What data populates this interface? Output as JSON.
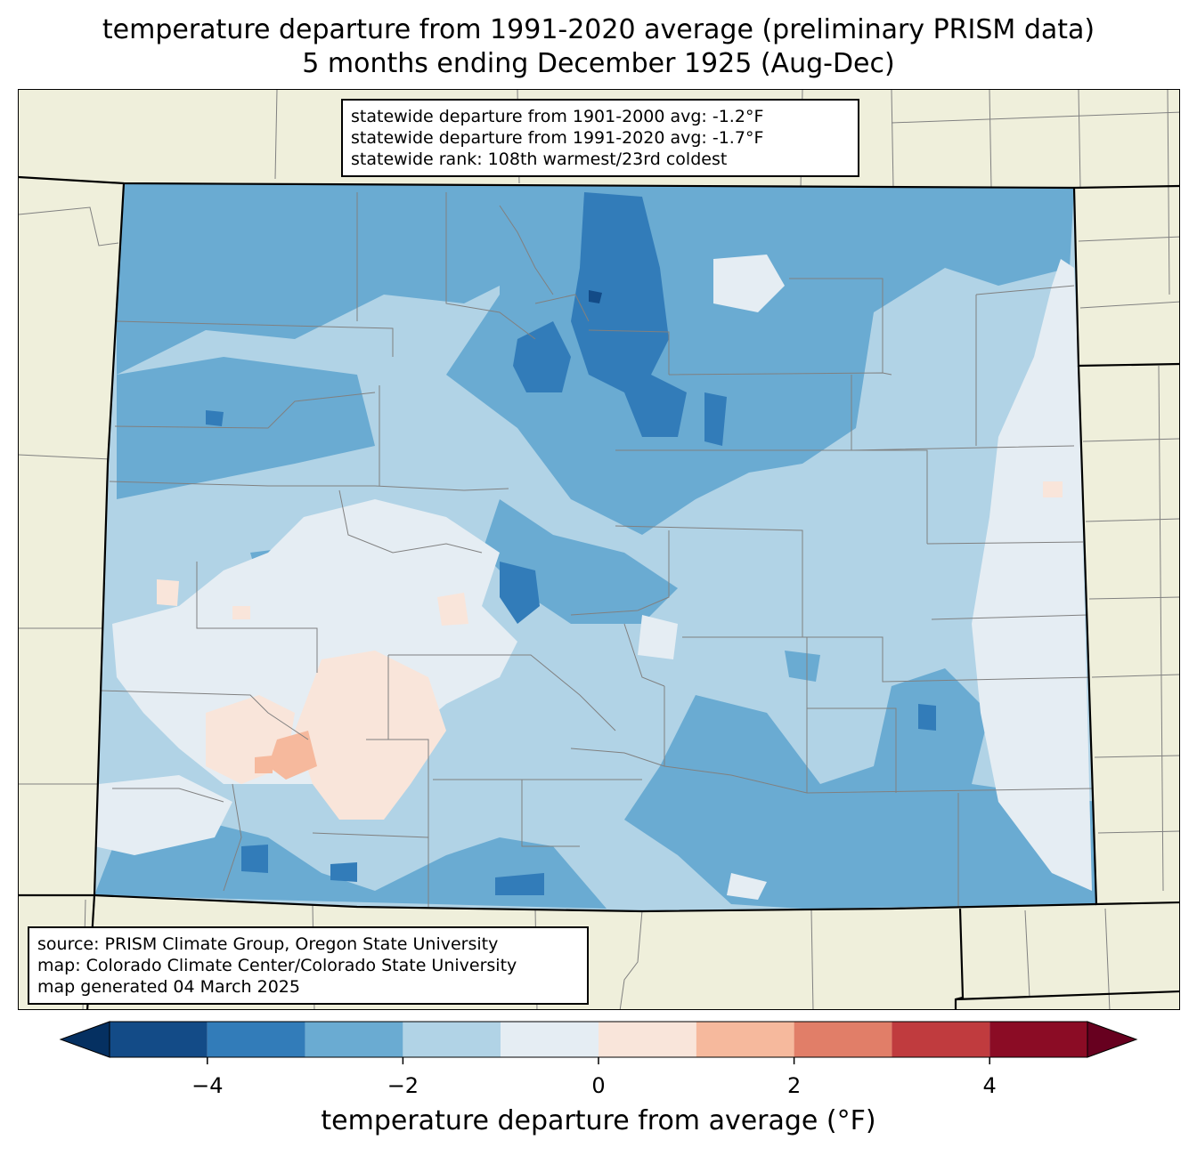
{
  "title": {
    "line1": "temperature departure from 1991-2020 average (preliminary PRISM data)",
    "line2": "5 months ending December 1925 (Aug-Dec)"
  },
  "stats": {
    "line1": "statewide departure from 1901-2000 avg: -1.2°F",
    "line2": "statewide departure from 1991-2020 avg: -1.7°F",
    "line3": "statewide rank: 108th warmest/23rd coldest"
  },
  "source": {
    "line1": "source: PRISM Climate Group, Oregon State University",
    "line2": "map: Colorado Climate Center/Colorado State University",
    "line3": "map generated 04 March 2025"
  },
  "colorbar": {
    "label": "temperature departure from average (°F)",
    "min": -5,
    "max": 5,
    "bins": [
      {
        "from": -5,
        "to": -4,
        "color": "#134b87"
      },
      {
        "from": -4,
        "to": -3,
        "color": "#327cb9"
      },
      {
        "from": -3,
        "to": -2,
        "color": "#6aabd2"
      },
      {
        "from": -2,
        "to": -1,
        "color": "#b1d3e6"
      },
      {
        "from": -1,
        "to": 0,
        "color": "#e5edf3"
      },
      {
        "from": 0,
        "to": 1,
        "color": "#f9e5da"
      },
      {
        "from": 1,
        "to": 2,
        "color": "#f6b99d"
      },
      {
        "from": 2,
        "to": 3,
        "color": "#e17e68"
      },
      {
        "from": 3,
        "to": 4,
        "color": "#c03b3e"
      },
      {
        "from": 4,
        "to": 5,
        "color": "#8b0c25"
      }
    ],
    "under_color": "#053061",
    "over_color": "#67001f",
    "ticks": [
      {
        "value": -4,
        "label": "−4"
      },
      {
        "value": -2,
        "label": "−2"
      },
      {
        "value": 0,
        "label": "0"
      },
      {
        "value": 2,
        "label": "2"
      },
      {
        "value": 4,
        "label": "4"
      }
    ]
  },
  "colors": {
    "land": "#efefdb",
    "state_border": "#000000",
    "county_border": "#808080"
  }
}
